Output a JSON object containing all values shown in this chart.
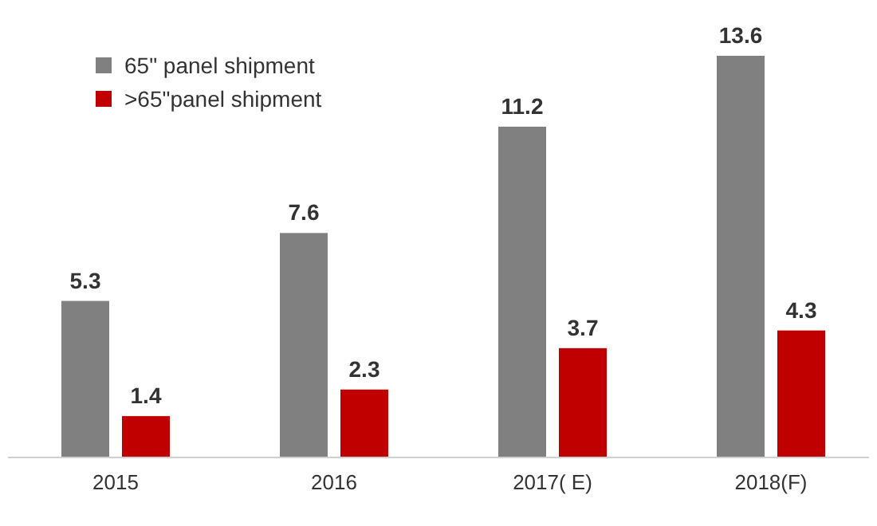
{
  "chart_data": {
    "type": "bar",
    "categories": [
      "2015",
      "2016",
      "2017( E)",
      "2018(F)"
    ],
    "series": [
      {
        "name": "65\" panel shipment",
        "color": "#808080",
        "values": [
          5.3,
          7.6,
          11.2,
          13.6
        ]
      },
      {
        "name": ">65\"panel shipment",
        "color": "#c00000",
        "values": [
          1.4,
          2.3,
          3.7,
          4.3
        ]
      }
    ],
    "data_labels": true,
    "legend": "top left"
  }
}
